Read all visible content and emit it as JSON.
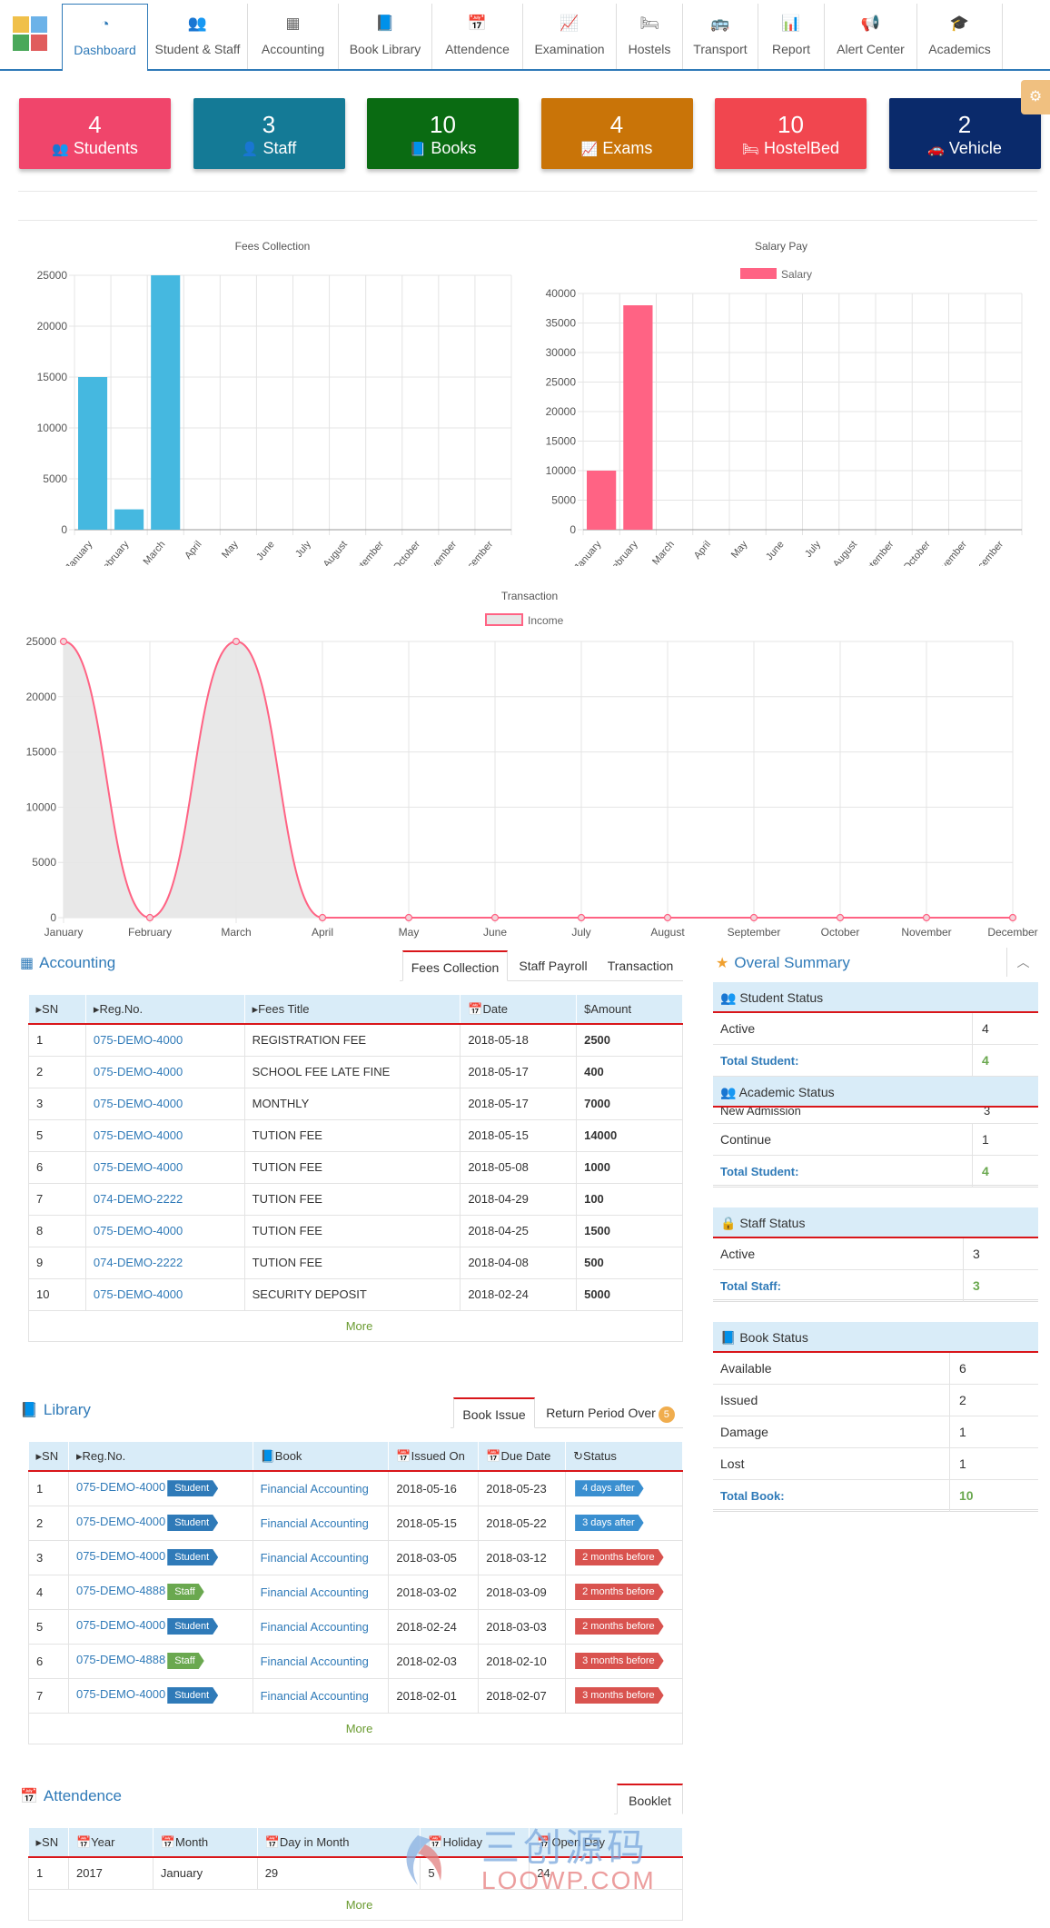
{
  "nav": [
    {
      "label": "Dashboard",
      "icon": "dashboard-icon",
      "glyph": "◔"
    },
    {
      "label": "Student & Staff",
      "icon": "users-icon",
      "glyph": "👥"
    },
    {
      "label": "Accounting",
      "icon": "calculator-icon",
      "glyph": "▦"
    },
    {
      "label": "Book Library",
      "icon": "book-icon",
      "glyph": "📘"
    },
    {
      "label": "Attendence",
      "icon": "calendar-icon",
      "glyph": "📅"
    },
    {
      "label": "Examination",
      "icon": "line-chart-icon",
      "glyph": "📈"
    },
    {
      "label": "Hostels",
      "icon": "bed-icon",
      "glyph": "🛏"
    },
    {
      "label": "Transport",
      "icon": "bus-icon",
      "glyph": "🚌"
    },
    {
      "label": "Report",
      "icon": "bar-chart-icon",
      "glyph": "📊"
    },
    {
      "label": "Alert Center",
      "icon": "bullhorn-icon",
      "glyph": "📢"
    },
    {
      "label": "Academics",
      "icon": "graduation-cap-icon",
      "glyph": "🎓"
    }
  ],
  "tiles": [
    {
      "count": "4",
      "label": "Students",
      "icon": "users-icon",
      "glyph": "👥",
      "color": "#f0456b"
    },
    {
      "count": "3",
      "label": "Staff",
      "icon": "staff-icon",
      "glyph": "👤",
      "color": "#147a96"
    },
    {
      "count": "10",
      "label": "Books",
      "icon": "book-icon",
      "glyph": "📘",
      "color": "#0a6b12"
    },
    {
      "count": "4",
      "label": "Exams",
      "icon": "line-chart-icon",
      "glyph": "📈",
      "color": "#c97408"
    },
    {
      "count": "10",
      "label": "HostelBed",
      "icon": "bed-icon",
      "glyph": "🛏",
      "color": "#f1464f"
    },
    {
      "count": "2",
      "label": "Vehicle",
      "icon": "car-icon",
      "glyph": "🚗",
      "color": "#0a2a6b"
    }
  ],
  "chart_data": [
    {
      "type": "bar",
      "title": "Fees Collection",
      "categories": [
        "January",
        "February",
        "March",
        "April",
        "May",
        "June",
        "July",
        "August",
        "September",
        "October",
        "November",
        "December"
      ],
      "values": [
        15000,
        2000,
        25000,
        0,
        0,
        0,
        0,
        0,
        0,
        0,
        0,
        0
      ],
      "ylim": [
        0,
        25000
      ],
      "yticks": [
        0,
        5000,
        10000,
        15000,
        20000,
        25000
      ],
      "color": "#45b8e0",
      "grid": true
    },
    {
      "type": "bar",
      "title": "Salary Pay",
      "categories": [
        "January",
        "February",
        "March",
        "April",
        "May",
        "June",
        "July",
        "August",
        "September",
        "October",
        "November",
        "December"
      ],
      "series": [
        {
          "name": "Salary",
          "values": [
            10000,
            38000,
            0,
            0,
            0,
            0,
            0,
            0,
            0,
            0,
            0,
            0
          ]
        }
      ],
      "ylim": [
        0,
        40000
      ],
      "yticks": [
        0,
        5000,
        10000,
        15000,
        20000,
        25000,
        30000,
        35000,
        40000
      ],
      "color": "#ff6384",
      "legend": "top",
      "grid": true
    },
    {
      "type": "area",
      "title": "Transaction",
      "categories": [
        "January",
        "February",
        "March",
        "April",
        "May",
        "June",
        "July",
        "August",
        "September",
        "October",
        "November",
        "December"
      ],
      "series": [
        {
          "name": "Income",
          "values": [
            25000,
            0,
            25000,
            0,
            0,
            0,
            0,
            0,
            0,
            0,
            0,
            0
          ]
        }
      ],
      "ylim": [
        0,
        25000
      ],
      "yticks": [
        0,
        5000,
        10000,
        15000,
        20000,
        25000
      ],
      "color": "#ff6384",
      "fill": "#e6e6e6",
      "legend": "top",
      "grid": true
    }
  ],
  "accounting": {
    "title": "Accounting",
    "tabs": [
      "Fees Collection",
      "Staff Payroll",
      "Transaction"
    ],
    "columns": [
      "SN",
      "Reg.No.",
      "Fees Title",
      "Date",
      "Amount"
    ],
    "rows": [
      [
        "1",
        "075-DEMO-4000",
        "REGISTRATION FEE",
        "2018-05-18",
        "2500"
      ],
      [
        "2",
        "075-DEMO-4000",
        "SCHOOL FEE LATE FINE",
        "2018-05-17",
        "400"
      ],
      [
        "3",
        "075-DEMO-4000",
        "MONTHLY",
        "2018-05-17",
        "7000"
      ],
      [
        "5",
        "075-DEMO-4000",
        "TUTION FEE",
        "2018-05-15",
        "14000"
      ],
      [
        "6",
        "075-DEMO-4000",
        "TUTION FEE",
        "2018-05-08",
        "1000"
      ],
      [
        "7",
        "074-DEMO-2222",
        "TUTION FEE",
        "2018-04-29",
        "100"
      ],
      [
        "8",
        "075-DEMO-4000",
        "TUTION FEE",
        "2018-04-25",
        "1500"
      ],
      [
        "9",
        "074-DEMO-2222",
        "TUTION FEE",
        "2018-04-08",
        "500"
      ],
      [
        "10",
        "075-DEMO-4000",
        "SECURITY DEPOSIT",
        "2018-02-24",
        "5000"
      ]
    ],
    "more": "More"
  },
  "library": {
    "title": "Library",
    "tabs": [
      "Book Issue",
      "Return Period Over"
    ],
    "return_badge": "5",
    "columns": [
      "SN",
      "Reg.No.",
      "Book",
      "Issued On",
      "Due Date",
      "Status"
    ],
    "rows": [
      [
        "1",
        "075-DEMO-4000",
        "Student",
        "Financial Accounting",
        "2018-05-16",
        "2018-05-23",
        "4 days after"
      ],
      [
        "2",
        "075-DEMO-4000",
        "Student",
        "Financial Accounting",
        "2018-05-15",
        "2018-05-22",
        "3 days after"
      ],
      [
        "3",
        "075-DEMO-4000",
        "Student",
        "Financial Accounting",
        "2018-03-05",
        "2018-03-12",
        "2 months before"
      ],
      [
        "4",
        "075-DEMO-4888",
        "Staff",
        "Financial Accounting",
        "2018-03-02",
        "2018-03-09",
        "2 months before"
      ],
      [
        "5",
        "075-DEMO-4000",
        "Student",
        "Financial Accounting",
        "2018-02-24",
        "2018-03-03",
        "2 months before"
      ],
      [
        "6",
        "075-DEMO-4888",
        "Staff",
        "Financial Accounting",
        "2018-02-03",
        "2018-02-10",
        "3 months before"
      ],
      [
        "7",
        "075-DEMO-4000",
        "Student",
        "Financial Accounting",
        "2018-02-01",
        "2018-02-07",
        "3 months before"
      ]
    ],
    "more": "More"
  },
  "attendence": {
    "title": "Attendence",
    "tabs": [
      "Booklet"
    ],
    "columns": [
      "SN",
      "Year",
      "Month",
      "Day in Month",
      "Holiday",
      "Open Day"
    ],
    "rows": [
      [
        "1",
        "2017",
        "January",
        "29",
        "5",
        "24"
      ]
    ],
    "more": "More"
  },
  "summary": {
    "title": "Overal Summary",
    "student": {
      "head": "Student Status",
      "active_label": "Active",
      "active": "4",
      "total_label": "Total Student:",
      "total": "4"
    },
    "academic": {
      "head": "Academic Status",
      "new_label": "New Admission",
      "new": "3",
      "continue_label": "Continue",
      "continue": "1",
      "total_label": "Total Student:",
      "total": "4"
    },
    "staff": {
      "head": "Staff Status",
      "active_label": "Active",
      "active": "3",
      "total_label": "Total Staff:",
      "total": "3"
    },
    "book": {
      "head": "Book Status",
      "available_label": "Available",
      "available": "6",
      "issued_label": "Issued",
      "issued": "2",
      "damage_label": "Damage",
      "damage": "1",
      "lost_label": "Lost",
      "lost": "1",
      "total_label": "Total Book:",
      "total": "10"
    }
  },
  "watermark": {
    "line1": "三创源码",
    "line2": "LOOWP.COM"
  }
}
